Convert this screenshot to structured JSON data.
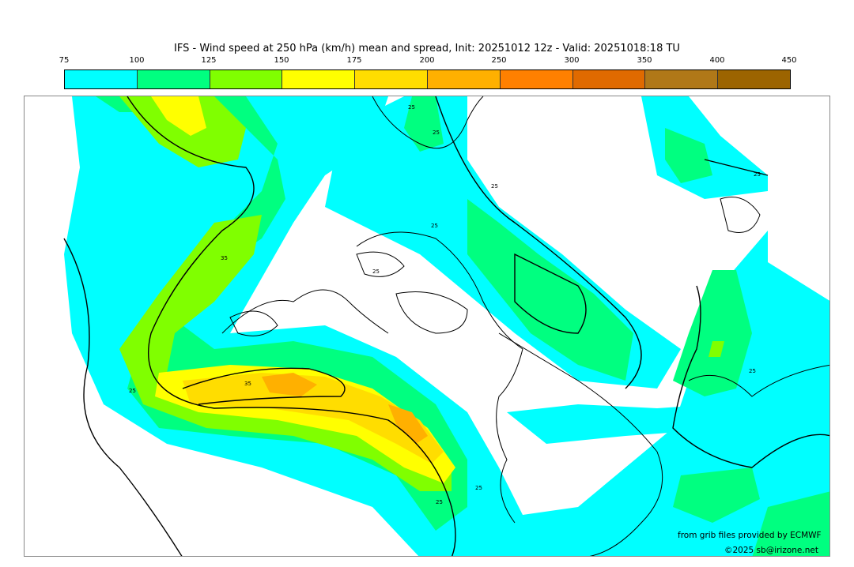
{
  "title": "IFS - Wind speed at 250 hPa (km/h) mean and spread, Init: 20251012 12z - Valid: 20251018:18 TU",
  "colorbar": {
    "ticks": [
      "75",
      "100",
      "125",
      "150",
      "175",
      "200",
      "250",
      "300",
      "350",
      "400",
      "450"
    ],
    "colors": [
      "#00ffff",
      "#00ff80",
      "#80ff00",
      "#ffff00",
      "#ffdd00",
      "#ffb000",
      "#ff8000",
      "#e06a00",
      "#b07818",
      "#9c6400"
    ]
  },
  "map": {
    "contour_labels": [
      "25",
      "25",
      "25",
      "35",
      "25",
      "25",
      "25",
      "35",
      "25",
      "25",
      "25",
      "25"
    ]
  },
  "credits": {
    "source": "from grib files provided by ECMWF",
    "copyright": "©2025 sb@irizone.net"
  }
}
